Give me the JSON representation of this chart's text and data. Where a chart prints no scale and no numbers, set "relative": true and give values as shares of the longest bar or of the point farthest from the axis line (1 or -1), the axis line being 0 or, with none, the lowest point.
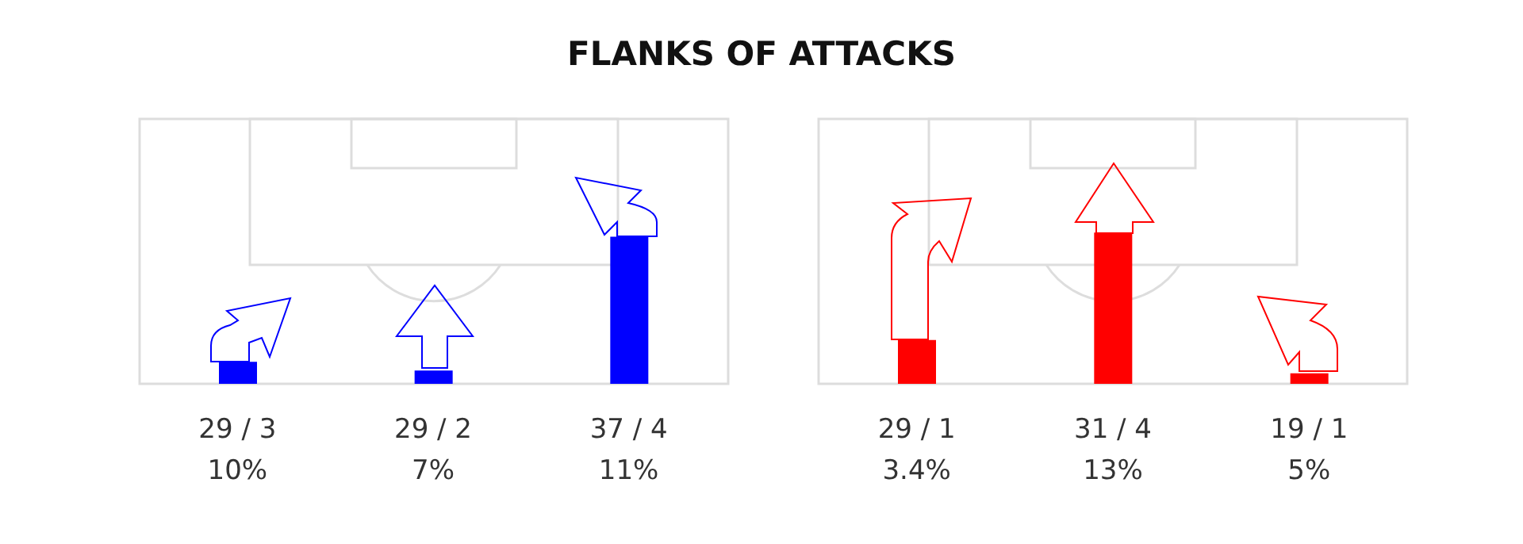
{
  "chart_data": [
    {
      "type": "bar",
      "title": "FLANKS OF ATTACKS",
      "relative": true,
      "categories": [
        "29 / 3\n10%",
        "29 / 2\n7%",
        "37 / 4\n11%"
      ],
      "values": [
        0.15,
        0.09,
        1
      ],
      "color": "#0000ff"
    },
    {
      "type": "bar",
      "relative": true,
      "categories": [
        "29 / 1\n3.4%",
        "31 / 4\n13%",
        "19 / 1\n5%"
      ],
      "values": [
        0.29,
        1,
        0.07
      ],
      "color": "#ff0000"
    }
  ]
}
